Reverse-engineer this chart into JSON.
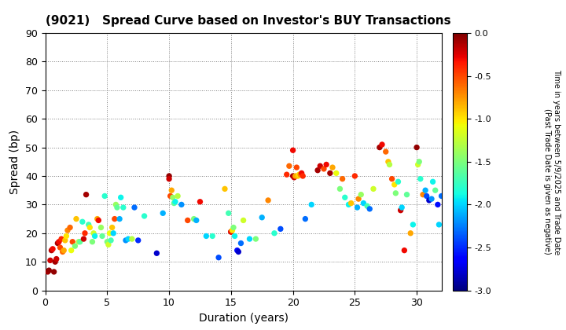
{
  "title": "(9021)   Spread Curve based on Investor's BUY Transactions",
  "xlabel": "Duration (years)",
  "ylabel": "Spread (bp)",
  "xlim": [
    0,
    32
  ],
  "ylim": [
    0,
    90
  ],
  "xticks": [
    0,
    5,
    10,
    15,
    20,
    25,
    30
  ],
  "yticks": [
    0,
    10,
    20,
    30,
    40,
    50,
    60,
    70,
    80,
    90
  ],
  "colorbar_label_line1": "Time in years between 5/9/2025 and Trade Date",
  "colorbar_label_line2": "(Past Trade Date is given as negative)",
  "vmin": -3.0,
  "vmax": 0.0,
  "points": [
    [
      0.2,
      6.5,
      -0.1
    ],
    [
      0.3,
      7.0,
      -0.05
    ],
    [
      0.4,
      10.5,
      -0.2
    ],
    [
      0.5,
      14.0,
      -0.15
    ],
    [
      0.6,
      14.5,
      -0.3
    ],
    [
      0.7,
      6.5,
      -0.05
    ],
    [
      0.8,
      10.0,
      -0.1
    ],
    [
      0.9,
      11.0,
      -0.2
    ],
    [
      1.0,
      16.5,
      -0.1
    ],
    [
      1.1,
      17.0,
      -0.3
    ],
    [
      1.2,
      15.0,
      -0.5
    ],
    [
      1.3,
      18.0,
      -0.4
    ],
    [
      1.4,
      13.5,
      -0.6
    ],
    [
      1.5,
      14.0,
      -0.8
    ],
    [
      1.6,
      17.5,
      -0.9
    ],
    [
      1.7,
      19.0,
      -1.0
    ],
    [
      1.8,
      21.0,
      -0.7
    ],
    [
      2.0,
      22.0,
      -0.6
    ],
    [
      2.1,
      14.0,
      -1.1
    ],
    [
      2.2,
      17.0,
      -0.5
    ],
    [
      2.4,
      15.5,
      -1.5
    ],
    [
      2.5,
      25.0,
      -0.9
    ],
    [
      2.7,
      17.0,
      -1.3
    ],
    [
      2.8,
      17.0,
      -1.6
    ],
    [
      3.0,
      24.0,
      -1.8
    ],
    [
      3.1,
      18.0,
      -0.2
    ],
    [
      3.2,
      20.0,
      -0.4
    ],
    [
      3.3,
      33.5,
      -0.1
    ],
    [
      3.5,
      23.0,
      -1.7
    ],
    [
      3.6,
      22.0,
      -1.0
    ],
    [
      3.8,
      17.0,
      -1.5
    ],
    [
      3.9,
      20.0,
      -1.2
    ],
    [
      4.0,
      19.0,
      -1.9
    ],
    [
      4.2,
      25.0,
      -0.8
    ],
    [
      4.3,
      24.5,
      -0.3
    ],
    [
      4.5,
      22.0,
      -1.4
    ],
    [
      4.6,
      19.0,
      -1.6
    ],
    [
      4.8,
      33.0,
      -1.8
    ],
    [
      5.0,
      17.0,
      -1.5
    ],
    [
      5.1,
      16.0,
      -1.2
    ],
    [
      5.2,
      20.0,
      -1.1
    ],
    [
      5.3,
      17.5,
      -1.7
    ],
    [
      5.4,
      22.0,
      -0.9
    ],
    [
      5.5,
      20.0,
      -2.0
    ],
    [
      5.6,
      25.0,
      -0.5
    ],
    [
      5.7,
      30.0,
      -1.4
    ],
    [
      5.8,
      29.0,
      -1.6
    ],
    [
      6.0,
      25.0,
      -2.1
    ],
    [
      6.1,
      32.5,
      -1.9
    ],
    [
      6.3,
      29.0,
      -1.8
    ],
    [
      6.5,
      17.5,
      -2.2
    ],
    [
      6.7,
      18.0,
      -2.0
    ],
    [
      7.0,
      18.0,
      -1.3
    ],
    [
      7.2,
      29.0,
      -2.3
    ],
    [
      7.5,
      17.5,
      -2.5
    ],
    [
      8.0,
      26.0,
      -1.8
    ],
    [
      9.0,
      13.0,
      -2.8
    ],
    [
      9.5,
      27.0,
      -2.1
    ],
    [
      10.0,
      40.0,
      -0.05
    ],
    [
      10.0,
      39.0,
      -0.2
    ],
    [
      10.1,
      33.0,
      -0.5
    ],
    [
      10.2,
      35.0,
      -0.8
    ],
    [
      10.3,
      32.5,
      -1.4
    ],
    [
      10.4,
      30.5,
      -1.6
    ],
    [
      10.5,
      31.0,
      -1.9
    ],
    [
      10.7,
      33.0,
      -1.3
    ],
    [
      11.0,
      30.0,
      -2.2
    ],
    [
      11.5,
      24.5,
      -0.5
    ],
    [
      12.0,
      25.0,
      -1.5
    ],
    [
      12.2,
      24.5,
      -2.1
    ],
    [
      12.5,
      31.0,
      -0.3
    ],
    [
      13.0,
      19.0,
      -2.0
    ],
    [
      13.5,
      19.0,
      -1.8
    ],
    [
      14.0,
      11.5,
      -2.4
    ],
    [
      14.5,
      35.5,
      -0.9
    ],
    [
      14.8,
      27.0,
      -1.7
    ],
    [
      15.0,
      20.5,
      -0.05
    ],
    [
      15.0,
      20.5,
      -0.3
    ],
    [
      15.1,
      21.0,
      -1.0
    ],
    [
      15.2,
      22.0,
      -1.5
    ],
    [
      15.3,
      19.0,
      -1.9
    ],
    [
      15.5,
      14.0,
      -2.6
    ],
    [
      15.6,
      13.5,
      -2.8
    ],
    [
      15.8,
      16.5,
      -2.3
    ],
    [
      16.0,
      24.5,
      -1.2
    ],
    [
      16.5,
      18.0,
      -2.0
    ],
    [
      17.0,
      18.0,
      -1.5
    ],
    [
      17.5,
      25.5,
      -2.1
    ],
    [
      18.0,
      31.5,
      -0.7
    ],
    [
      18.5,
      20.0,
      -1.8
    ],
    [
      19.0,
      21.5,
      -2.4
    ],
    [
      19.5,
      40.5,
      -0.4
    ],
    [
      19.7,
      43.5,
      -0.6
    ],
    [
      20.0,
      40.0,
      -0.1
    ],
    [
      20.0,
      49.0,
      -0.3
    ],
    [
      20.1,
      39.5,
      -0.2
    ],
    [
      20.2,
      40.0,
      -0.8
    ],
    [
      20.3,
      43.0,
      -0.5
    ],
    [
      20.4,
      40.0,
      -0.9
    ],
    [
      20.5,
      40.5,
      -1.0
    ],
    [
      20.6,
      40.5,
      -0.7
    ],
    [
      20.7,
      41.0,
      -0.3
    ],
    [
      20.8,
      40.0,
      -0.4
    ],
    [
      21.0,
      25.0,
      -2.3
    ],
    [
      21.5,
      30.0,
      -2.0
    ],
    [
      22.0,
      42.0,
      -0.1
    ],
    [
      22.2,
      43.5,
      -0.2
    ],
    [
      22.5,
      42.5,
      -0.5
    ],
    [
      22.7,
      44.0,
      -0.3
    ],
    [
      23.0,
      41.0,
      -0.1
    ],
    [
      23.2,
      43.0,
      -0.8
    ],
    [
      23.5,
      41.0,
      -1.1
    ],
    [
      23.8,
      35.5,
      -1.5
    ],
    [
      24.0,
      39.0,
      -0.6
    ],
    [
      24.2,
      32.5,
      -1.8
    ],
    [
      24.5,
      30.0,
      -1.9
    ],
    [
      24.7,
      30.5,
      -0.9
    ],
    [
      25.0,
      40.0,
      -0.4
    ],
    [
      25.2,
      29.0,
      -2.1
    ],
    [
      25.3,
      32.0,
      -0.7
    ],
    [
      25.5,
      33.5,
      -1.4
    ],
    [
      25.7,
      30.5,
      -2.0
    ],
    [
      26.0,
      29.5,
      -1.7
    ],
    [
      26.2,
      28.5,
      -2.3
    ],
    [
      26.5,
      35.5,
      -1.2
    ],
    [
      27.0,
      50.0,
      -0.1
    ],
    [
      27.2,
      51.0,
      -0.3
    ],
    [
      27.5,
      48.5,
      -0.6
    ],
    [
      27.7,
      45.0,
      -0.9
    ],
    [
      27.8,
      44.0,
      -1.3
    ],
    [
      28.0,
      39.0,
      -0.5
    ],
    [
      28.2,
      37.0,
      -1.0
    ],
    [
      28.3,
      34.0,
      -1.5
    ],
    [
      28.5,
      38.0,
      -1.8
    ],
    [
      28.7,
      28.0,
      -0.2
    ],
    [
      28.8,
      29.0,
      -2.0
    ],
    [
      29.0,
      14.0,
      -0.3
    ],
    [
      29.2,
      33.5,
      -1.6
    ],
    [
      29.5,
      20.0,
      -0.8
    ],
    [
      29.7,
      23.0,
      -1.9
    ],
    [
      30.0,
      50.0,
      -0.05
    ],
    [
      30.1,
      44.0,
      -1.2
    ],
    [
      30.2,
      45.0,
      -1.5
    ],
    [
      30.3,
      39.0,
      -1.8
    ],
    [
      30.5,
      33.5,
      -0.7
    ],
    [
      30.7,
      35.0,
      -2.1
    ],
    [
      30.8,
      33.0,
      -2.4
    ],
    [
      31.0,
      31.5,
      -2.8
    ],
    [
      31.2,
      32.0,
      -2.2
    ],
    [
      31.3,
      38.0,
      -1.9
    ],
    [
      31.5,
      35.0,
      -1.6
    ],
    [
      31.7,
      30.0,
      -2.6
    ],
    [
      31.8,
      23.0,
      -2.0
    ],
    [
      32.0,
      33.0,
      -2.3
    ]
  ]
}
